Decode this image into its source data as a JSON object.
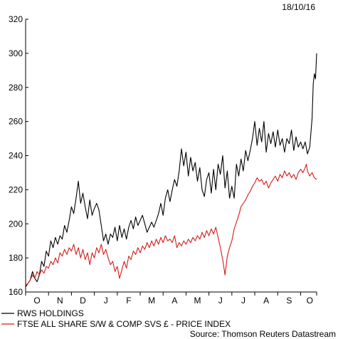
{
  "chart_data": {
    "type": "line",
    "date": "18/10/16",
    "source": "Source: Thomson Reuters Datastream",
    "ylim": [
      160,
      320
    ],
    "yticks": [
      160,
      180,
      200,
      220,
      240,
      260,
      280,
      300,
      320
    ],
    "xlim": [
      0,
      12.7
    ],
    "xticks": [
      {
        "label": "O",
        "x": 0.5
      },
      {
        "label": "N",
        "x": 1.5
      },
      {
        "label": "D",
        "x": 2.5
      },
      {
        "label": "J",
        "x": 3.5
      },
      {
        "label": "F",
        "x": 4.5
      },
      {
        "label": "M",
        "x": 5.5
      },
      {
        "label": "A",
        "x": 6.5
      },
      {
        "label": "M",
        "x": 7.5
      },
      {
        "label": "J",
        "x": 8.5
      },
      {
        "label": "J",
        "x": 9.5
      },
      {
        "label": "A",
        "x": 10.5
      },
      {
        "label": "S",
        "x": 11.5
      },
      {
        "label": "O",
        "x": 12.4
      }
    ],
    "series": [
      {
        "name": "RWS HOLDINGS",
        "color": "#000000",
        "points": [
          [
            0.0,
            163
          ],
          [
            0.1,
            165
          ],
          [
            0.2,
            167
          ],
          [
            0.3,
            172
          ],
          [
            0.4,
            168
          ],
          [
            0.5,
            166
          ],
          [
            0.6,
            170
          ],
          [
            0.7,
            178
          ],
          [
            0.8,
            175
          ],
          [
            0.9,
            184
          ],
          [
            1.0,
            181
          ],
          [
            1.1,
            190
          ],
          [
            1.2,
            186
          ],
          [
            1.3,
            192
          ],
          [
            1.4,
            188
          ],
          [
            1.5,
            193
          ],
          [
            1.6,
            191
          ],
          [
            1.7,
            199
          ],
          [
            1.8,
            195
          ],
          [
            1.9,
            202
          ],
          [
            2.0,
            210
          ],
          [
            2.1,
            206
          ],
          [
            2.2,
            215
          ],
          [
            2.3,
            225
          ],
          [
            2.4,
            212
          ],
          [
            2.5,
            218
          ],
          [
            2.6,
            210
          ],
          [
            2.7,
            203
          ],
          [
            2.8,
            214
          ],
          [
            2.9,
            205
          ],
          [
            3.0,
            209
          ],
          [
            3.1,
            212
          ],
          [
            3.2,
            208
          ],
          [
            3.3,
            199
          ],
          [
            3.4,
            190
          ],
          [
            3.5,
            194
          ],
          [
            3.6,
            188
          ],
          [
            3.7,
            194
          ],
          [
            3.8,
            192
          ],
          [
            3.9,
            198
          ],
          [
            4.0,
            190
          ],
          [
            4.1,
            199
          ],
          [
            4.2,
            192
          ],
          [
            4.3,
            197
          ],
          [
            4.4,
            191
          ],
          [
            4.5,
            198
          ],
          [
            4.6,
            202
          ],
          [
            4.7,
            197
          ],
          [
            4.8,
            204
          ],
          [
            4.9,
            199
          ],
          [
            5.0,
            202
          ],
          [
            5.1,
            205
          ],
          [
            5.2,
            200
          ],
          [
            5.3,
            195
          ],
          [
            5.4,
            198
          ],
          [
            5.5,
            201
          ],
          [
            5.6,
            198
          ],
          [
            5.7,
            202
          ],
          [
            5.8,
            206
          ],
          [
            5.9,
            212
          ],
          [
            6.0,
            205
          ],
          [
            6.1,
            215
          ],
          [
            6.2,
            220
          ],
          [
            6.3,
            213
          ],
          [
            6.4,
            220
          ],
          [
            6.5,
            226
          ],
          [
            6.6,
            222
          ],
          [
            6.7,
            231
          ],
          [
            6.8,
            244
          ],
          [
            6.9,
            234
          ],
          [
            7.0,
            242
          ],
          [
            7.1,
            228
          ],
          [
            7.2,
            239
          ],
          [
            7.3,
            231
          ],
          [
            7.4,
            236
          ],
          [
            7.5,
            225
          ],
          [
            7.6,
            233
          ],
          [
            7.7,
            220
          ],
          [
            7.8,
            216
          ],
          [
            7.9,
            226
          ],
          [
            8.0,
            230
          ],
          [
            8.1,
            218
          ],
          [
            8.2,
            232
          ],
          [
            8.3,
            220
          ],
          [
            8.4,
            235
          ],
          [
            8.5,
            229
          ],
          [
            8.6,
            240
          ],
          [
            8.7,
            221
          ],
          [
            8.8,
            231
          ],
          [
            8.9,
            215
          ],
          [
            9.0,
            222
          ],
          [
            9.1,
            215
          ],
          [
            9.2,
            235
          ],
          [
            9.3,
            228
          ],
          [
            9.4,
            238
          ],
          [
            9.5,
            231
          ],
          [
            9.6,
            243
          ],
          [
            9.7,
            237
          ],
          [
            9.8,
            243
          ],
          [
            9.9,
            250
          ],
          [
            10.0,
            260
          ],
          [
            10.1,
            246
          ],
          [
            10.2,
            256
          ],
          [
            10.3,
            248
          ],
          [
            10.4,
            260
          ],
          [
            10.5,
            242
          ],
          [
            10.6,
            253
          ],
          [
            10.7,
            247
          ],
          [
            10.8,
            254
          ],
          [
            10.9,
            245
          ],
          [
            11.0,
            255
          ],
          [
            11.1,
            246
          ],
          [
            11.2,
            250
          ],
          [
            11.3,
            242
          ],
          [
            11.4,
            250
          ],
          [
            11.5,
            247
          ],
          [
            11.6,
            255
          ],
          [
            11.7,
            243
          ],
          [
            11.8,
            251
          ],
          [
            11.9,
            245
          ],
          [
            12.0,
            248
          ],
          [
            12.1,
            244
          ],
          [
            12.2,
            248
          ],
          [
            12.3,
            241
          ],
          [
            12.4,
            245
          ],
          [
            12.5,
            262
          ],
          [
            12.55,
            282
          ],
          [
            12.6,
            288
          ],
          [
            12.65,
            285
          ],
          [
            12.7,
            300
          ]
        ]
      },
      {
        "name": "FTSE ALL SHARE S/W & COMP SVS £ - PRICE INDEX",
        "color": "#d61c1c",
        "points": [
          [
            0.0,
            164
          ],
          [
            0.1,
            165
          ],
          [
            0.2,
            167
          ],
          [
            0.3,
            170
          ],
          [
            0.4,
            168
          ],
          [
            0.5,
            172
          ],
          [
            0.6,
            170
          ],
          [
            0.7,
            173
          ],
          [
            0.8,
            171
          ],
          [
            0.9,
            175
          ],
          [
            1.0,
            174
          ],
          [
            1.1,
            178
          ],
          [
            1.2,
            176
          ],
          [
            1.3,
            180
          ],
          [
            1.4,
            177
          ],
          [
            1.5,
            183
          ],
          [
            1.6,
            181
          ],
          [
            1.7,
            185
          ],
          [
            1.8,
            182
          ],
          [
            1.9,
            186
          ],
          [
            2.0,
            184
          ],
          [
            2.1,
            188
          ],
          [
            2.2,
            182
          ],
          [
            2.3,
            186
          ],
          [
            2.4,
            180
          ],
          [
            2.5,
            185
          ],
          [
            2.6,
            179
          ],
          [
            2.7,
            183
          ],
          [
            2.8,
            176
          ],
          [
            2.9,
            183
          ],
          [
            3.0,
            180
          ],
          [
            3.1,
            186
          ],
          [
            3.2,
            183
          ],
          [
            3.3,
            188
          ],
          [
            3.4,
            182
          ],
          [
            3.5,
            185
          ],
          [
            3.6,
            180
          ],
          [
            3.7,
            176
          ],
          [
            3.8,
            178
          ],
          [
            3.9,
            172
          ],
          [
            4.0,
            175
          ],
          [
            4.1,
            168
          ],
          [
            4.2,
            173
          ],
          [
            4.3,
            178
          ],
          [
            4.4,
            174
          ],
          [
            4.5,
            181
          ],
          [
            4.6,
            179
          ],
          [
            4.7,
            184
          ],
          [
            4.8,
            182
          ],
          [
            4.9,
            186
          ],
          [
            5.0,
            183
          ],
          [
            5.1,
            187
          ],
          [
            5.2,
            185
          ],
          [
            5.3,
            189
          ],
          [
            5.4,
            186
          ],
          [
            5.5,
            190
          ],
          [
            5.6,
            187
          ],
          [
            5.7,
            191
          ],
          [
            5.8,
            188
          ],
          [
            5.9,
            192
          ],
          [
            6.0,
            189
          ],
          [
            6.1,
            193
          ],
          [
            6.2,
            190
          ],
          [
            6.3,
            191
          ],
          [
            6.4,
            189
          ],
          [
            6.5,
            193
          ],
          [
            6.6,
            186
          ],
          [
            6.7,
            189
          ],
          [
            6.8,
            187
          ],
          [
            6.9,
            190
          ],
          [
            7.0,
            188
          ],
          [
            7.1,
            191
          ],
          [
            7.2,
            189
          ],
          [
            7.3,
            192
          ],
          [
            7.4,
            190
          ],
          [
            7.5,
            193
          ],
          [
            7.6,
            191
          ],
          [
            7.7,
            195
          ],
          [
            7.8,
            192
          ],
          [
            7.9,
            196
          ],
          [
            8.0,
            193
          ],
          [
            8.1,
            197
          ],
          [
            8.2,
            194
          ],
          [
            8.3,
            198
          ],
          [
            8.4,
            192
          ],
          [
            8.5,
            186
          ],
          [
            8.6,
            179
          ],
          [
            8.7,
            170
          ],
          [
            8.8,
            181
          ],
          [
            8.9,
            186
          ],
          [
            9.0,
            190
          ],
          [
            9.1,
            197
          ],
          [
            9.2,
            201
          ],
          [
            9.3,
            205
          ],
          [
            9.4,
            210
          ],
          [
            9.5,
            212
          ],
          [
            9.6,
            214
          ],
          [
            9.7,
            217
          ],
          [
            9.8,
            219
          ],
          [
            9.9,
            222
          ],
          [
            10.0,
            224
          ],
          [
            10.1,
            227
          ],
          [
            10.2,
            225
          ],
          [
            10.3,
            226
          ],
          [
            10.4,
            223
          ],
          [
            10.5,
            225
          ],
          [
            10.6,
            221
          ],
          [
            10.7,
            224
          ],
          [
            10.8,
            226
          ],
          [
            10.9,
            228
          ],
          [
            11.0,
            225
          ],
          [
            11.1,
            229
          ],
          [
            11.2,
            227
          ],
          [
            11.3,
            231
          ],
          [
            11.4,
            228
          ],
          [
            11.5,
            230
          ],
          [
            11.6,
            227
          ],
          [
            11.7,
            229
          ],
          [
            11.8,
            226
          ],
          [
            11.9,
            230
          ],
          [
            12.0,
            232
          ],
          [
            12.1,
            230
          ],
          [
            12.2,
            233
          ],
          [
            12.25,
            235
          ],
          [
            12.3,
            231
          ],
          [
            12.4,
            228
          ],
          [
            12.5,
            230
          ],
          [
            12.6,
            227
          ],
          [
            12.7,
            226
          ]
        ]
      }
    ]
  }
}
